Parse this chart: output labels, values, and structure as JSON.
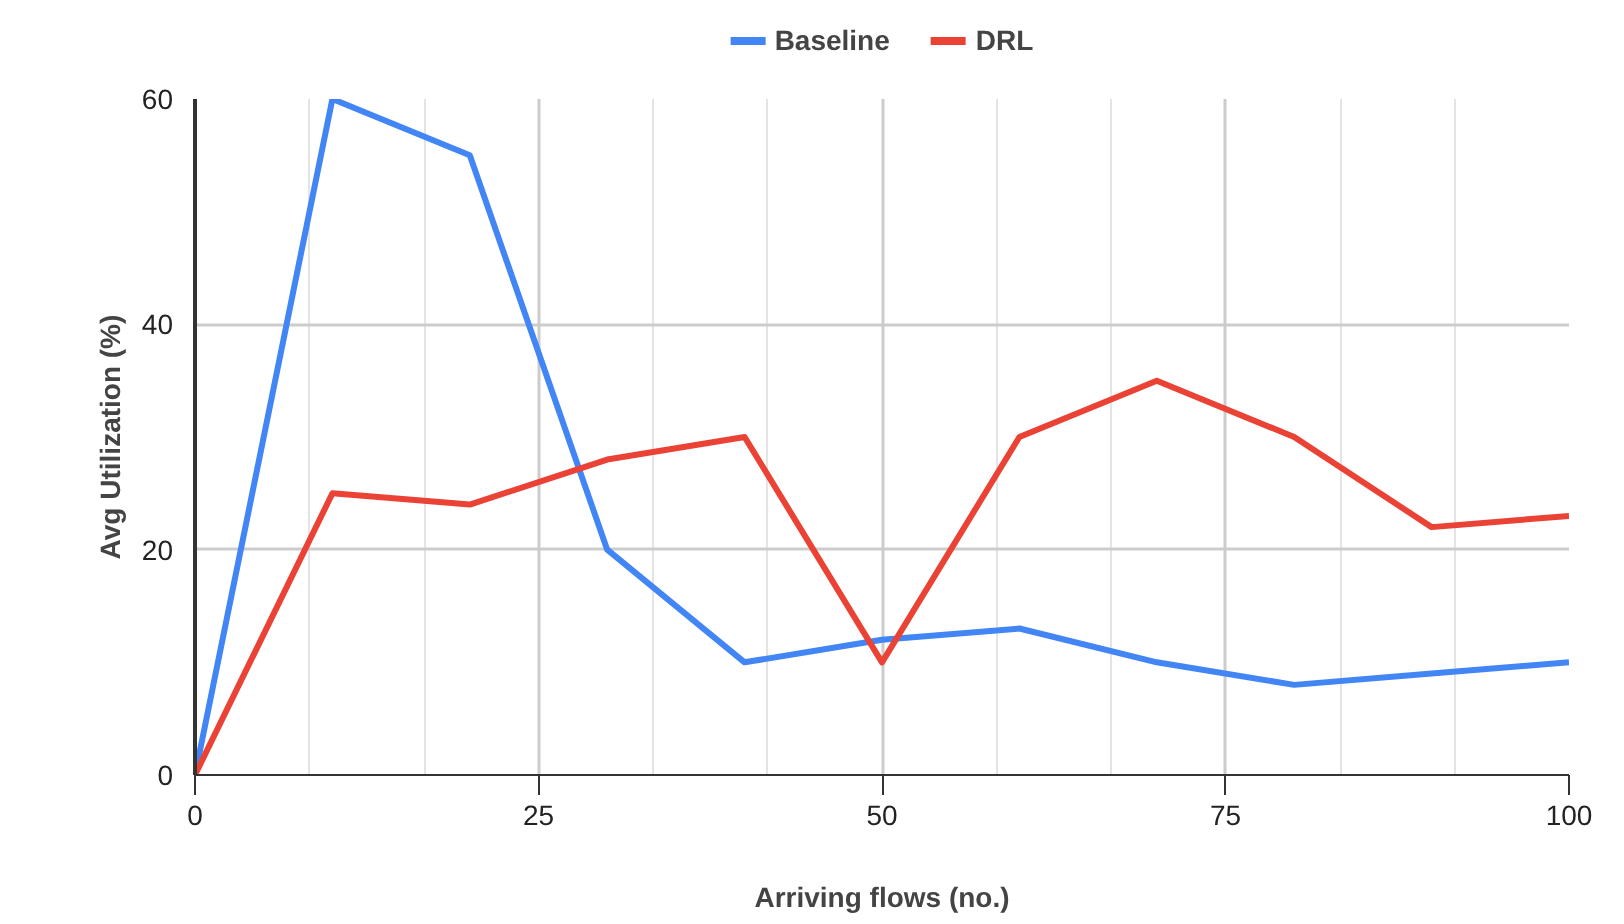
{
  "chart_data": {
    "type": "line",
    "xlabel": "Arriving flows (no.)",
    "ylabel": "Avg Utilization (%)",
    "x": [
      0,
      10,
      20,
      30,
      40,
      50,
      60,
      70,
      80,
      90,
      100
    ],
    "series": [
      {
        "name": "Baseline",
        "color": "#4285f4",
        "values": [
          0,
          60,
          55,
          20,
          10,
          12,
          13,
          10,
          8,
          9,
          10
        ]
      },
      {
        "name": "DRL",
        "color": "#ea4335",
        "values": [
          0,
          25,
          24,
          28,
          30,
          10,
          30,
          35,
          30,
          22,
          23
        ]
      }
    ],
    "xlim": [
      0,
      100
    ],
    "ylim": [
      0,
      60
    ],
    "xticks": [
      0,
      25,
      50,
      75,
      100
    ],
    "yticks": [
      0,
      20,
      40,
      60
    ],
    "grid": true,
    "legend": "top",
    "marker": "none",
    "line_style": "solid"
  }
}
